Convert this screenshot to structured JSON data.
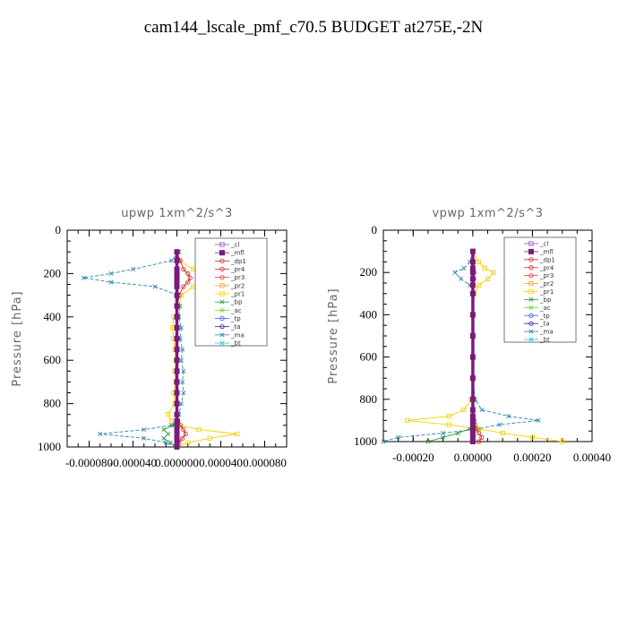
{
  "title": "cam144_lscale_pmf_c70.5  BUDGET at275E,-2N",
  "colors": {
    "cl": "#8a4fc6",
    "mfl": "#7a1a7a",
    "dp1": "#cc2222",
    "pr4": "#d42a3a",
    "pr3": "#ee3344",
    "pr2": "#ff9a22",
    "pr1": "#f2d000",
    "bp": "#2a9a3a",
    "ac": "#66dd33",
    "tp": "#3a66cc",
    "ta": "#2222aa",
    "ma": "#2b86aa",
    "bt": "#22ccdd"
  },
  "chart_data": [
    {
      "type": "line",
      "title": "upwp    1xm^2/s^3",
      "ylabel": "Pressure [hPa]",
      "xlim": [
        -0.0001,
        0.0001
      ],
      "ylim": [
        1000,
        0
      ],
      "xticks": [
        -8e-05,
        -4e-05,
        0.0,
        4e-05,
        8e-05
      ],
      "xtick_labels": [
        "-0.000080",
        "-0.000040",
        "0.000000",
        "0.000040",
        "0.000080"
      ],
      "yticks": [
        0,
        200,
        400,
        600,
        800,
        1000
      ],
      "legend": [
        "_cl",
        "_mfl",
        "_dp1",
        "_pr4",
        "_pr3",
        "_pr2",
        "_pr1",
        "_bp",
        "_ac",
        "_tp",
        "_ta",
        "_ma",
        "_bt"
      ],
      "pressure": [
        100,
        140,
        180,
        200,
        220,
        240,
        260,
        300,
        350,
        400,
        450,
        500,
        550,
        600,
        650,
        700,
        750,
        800,
        850,
        880,
        900,
        920,
        940,
        960,
        980,
        1000
      ],
      "series": [
        {
          "name": "_ma",
          "color_key": "ma",
          "values": [
            2e-06,
            -5e-06,
            -4e-05,
            -6e-05,
            -8.5e-05,
            -6e-05,
            -2e-05,
            1e-06,
            3e-06,
            2e-06,
            4e-06,
            3e-06,
            5e-06,
            4e-06,
            6e-06,
            5e-06,
            6e-06,
            4e-06,
            2e-06,
            1e-06,
            -5e-06,
            -3e-05,
            -7e-05,
            -3e-05,
            -1e-05,
            0.0
          ]
        },
        {
          "name": "_pr1",
          "color_key": "pr1",
          "values": [
            0.0,
            2e-06,
            1.5e-05,
            4e-05,
            6.5e-05,
            3e-05,
            1.5e-05,
            4e-06,
            2e-06,
            -3e-06,
            -4e-06,
            -3e-06,
            -2e-06,
            -1e-06,
            -2e-06,
            -1e-06,
            -3e-06,
            -2e-06,
            -8e-06,
            -5e-06,
            3e-06,
            2e-05,
            5.5e-05,
            3e-05,
            1e-05,
            0.0
          ]
        },
        {
          "name": "_dp1",
          "color_key": "dp1",
          "values": [
            0.0,
            3e-06,
            6e-06,
            1e-05,
            1.2e-05,
            1e-05,
            6e-06,
            2e-06,
            0.0,
            0.0,
            0.0,
            0.0,
            0.0,
            0.0,
            0.0,
            0.0,
            0.0,
            0.0,
            0.0,
            1e-06,
            3e-06,
            6e-06,
            8e-06,
            5e-06,
            2e-06,
            0.0
          ]
        },
        {
          "name": "_bp",
          "color_key": "bp",
          "values": [
            0.0,
            0.0,
            0.0,
            0.0,
            0.0,
            0.0,
            0.0,
            0.0,
            0.0,
            0.0,
            0.0,
            0.0,
            0.0,
            0.0,
            0.0,
            0.0,
            0.0,
            0.0,
            0.0,
            0.0,
            -3e-06,
            -1.2e-05,
            -8e-06,
            -1.2e-05,
            -6e-06,
            0.0
          ]
        },
        {
          "name": "_mfl",
          "color_key": "mfl",
          "values": [
            0.0,
            0.0,
            0.0,
            0.0,
            0.0,
            0.0,
            0.0,
            0.0,
            0.0,
            0.0,
            0.0,
            0.0,
            0.0,
            0.0,
            0.0,
            0.0,
            0.0,
            0.0,
            0.0,
            0.0,
            0.0,
            0.0,
            0.0,
            0.0,
            0.0,
            0.0
          ]
        }
      ]
    },
    {
      "type": "line",
      "title": "vpwp    1xm^2/s^3",
      "ylabel": "Pressure [hPa]",
      "xlim": [
        -0.0003,
        0.0004
      ],
      "ylim": [
        1000,
        0
      ],
      "xticks": [
        -0.0002,
        0.0,
        0.0002,
        0.0004
      ],
      "xtick_labels": [
        "-0.00020",
        "0.00000",
        "0.00020",
        "0.00040"
      ],
      "yticks": [
        0,
        200,
        400,
        600,
        800,
        1000
      ],
      "legend": [
        "_cl",
        "_mfl",
        "_dp1",
        "_pr4",
        "_pr3",
        "_pr2",
        "_pr1",
        "_bp",
        "_ac",
        "_tp",
        "_ta",
        "_ma",
        "_bt"
      ],
      "pressure": [
        100,
        150,
        180,
        200,
        230,
        260,
        300,
        400,
        500,
        600,
        700,
        800,
        850,
        880,
        900,
        920,
        940,
        960,
        980,
        1000
      ],
      "series": [
        {
          "name": "_ma",
          "color_key": "ma",
          "values": [
            0.0,
            -1e-05,
            -3e-05,
            -6e-05,
            -4e-05,
            -1e-05,
            5e-06,
            0.0,
            0.0,
            0.0,
            0.0,
            8e-06,
            3e-05,
            0.00012,
            0.00022,
            9e-05,
            2e-05,
            -0.0001,
            -0.00025,
            -0.0003
          ]
        },
        {
          "name": "_pr1",
          "color_key": "pr1",
          "values": [
            0.0,
            2e-05,
            4e-05,
            7e-05,
            5e-05,
            2e-05,
            5e-06,
            0.0,
            0.0,
            0.0,
            0.0,
            -5e-06,
            -3e-05,
            -8e-05,
            -0.00022,
            -8e-05,
            2e-05,
            0.0001,
            0.0002,
            0.0003
          ]
        },
        {
          "name": "_dp1",
          "color_key": "dp1",
          "values": [
            0.0,
            0.0,
            0.0,
            4e-06,
            3e-06,
            0.0,
            0.0,
            0.0,
            0.0,
            0.0,
            0.0,
            0.0,
            0.0,
            0.0,
            4e-06,
            8e-06,
            1e-05,
            2e-05,
            3e-05,
            2e-05
          ]
        },
        {
          "name": "_bp",
          "color_key": "bp",
          "values": [
            0.0,
            0.0,
            0.0,
            0.0,
            0.0,
            0.0,
            0.0,
            0.0,
            0.0,
            0.0,
            0.0,
            0.0,
            0.0,
            0.0,
            0.0,
            0.0,
            -1e-05,
            -5e-05,
            -0.0001,
            -0.00015
          ]
        },
        {
          "name": "_mfl",
          "color_key": "mfl",
          "values": [
            0.0,
            0.0,
            0.0,
            0.0,
            0.0,
            0.0,
            0.0,
            0.0,
            0.0,
            0.0,
            0.0,
            0.0,
            0.0,
            0.0,
            0.0,
            0.0,
            0.0,
            0.0,
            0.0,
            0.0
          ]
        }
      ]
    }
  ]
}
